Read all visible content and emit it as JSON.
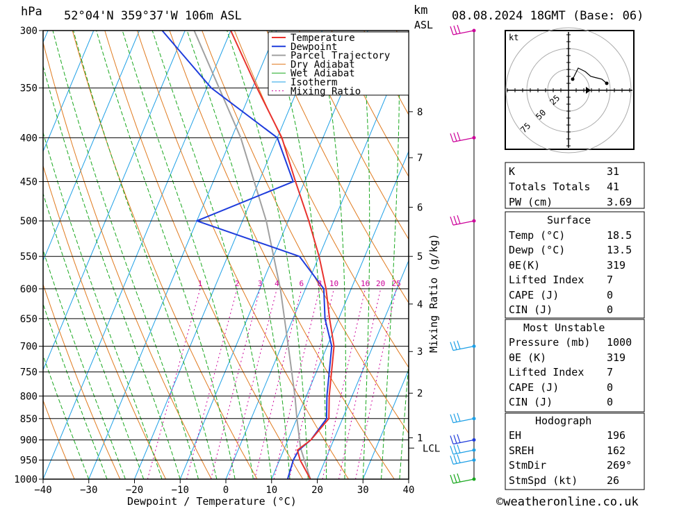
{
  "header": {
    "location": "52°04'N  359°37'W  106m  ASL",
    "datetime": "08.08.2024  18GMT  (Base: 06)",
    "unit_left": "hPa",
    "unit_right_1": "km",
    "unit_right_2": "ASL"
  },
  "colors": {
    "temperature": "#e8322d",
    "dewpoint": "#1e3cdc",
    "parcel": "#a0a0a0",
    "dry_adiabat": "#e07a1e",
    "wet_adiabat": "#19a81e",
    "isotherm": "#1ea0e6",
    "mixing_ratio": "#cc0099"
  },
  "chart_data": {
    "type": "line",
    "subtype": "skew-T log-P diagram",
    "title": "52°04'N  359°37'W  106m  ASL",
    "xlabel": "Dewpoint / Temperature (°C)",
    "ylabel": "hPa",
    "y2label": "Mixing Ratio (g/kg)",
    "xlim": [
      -40,
      40
    ],
    "ylim": [
      1000,
      300
    ],
    "y_scale": "log",
    "x_ticks": [
      "−40",
      "−30",
      "−20",
      "−10",
      "0",
      "10",
      "20",
      "30",
      "40"
    ],
    "pressure_levels": [
      300,
      350,
      400,
      450,
      500,
      550,
      600,
      650,
      700,
      750,
      800,
      850,
      900,
      950,
      1000
    ],
    "height_ticks_km": [
      {
        "km": "8",
        "p": 373
      },
      {
        "km": "7",
        "p": 422
      },
      {
        "km": "6",
        "p": 482
      },
      {
        "km": "5",
        "p": 550
      },
      {
        "km": "4",
        "p": 625
      },
      {
        "km": "3",
        "p": 710
      },
      {
        "km": "2",
        "p": 794
      },
      {
        "km": "1",
        "p": 895
      }
    ],
    "lcl": {
      "label": "LCL",
      "p": 920
    },
    "mixing_ratio_labels": [
      "1",
      "2",
      "3",
      "4",
      "6",
      "8",
      "10",
      "16",
      "20",
      "25"
    ],
    "legend": [
      "Temperature",
      "Dewpoint",
      "Parcel Trajectory",
      "Dry Adiabat",
      "Wet Adiabat",
      "Isotherm",
      "Mixing Ratio"
    ],
    "legend_position": "top-right",
    "series": [
      {
        "name": "Temperature",
        "points": [
          [
            1000,
            18.5
          ],
          [
            950,
            14.5
          ],
          [
            925,
            13
          ],
          [
            900,
            15
          ],
          [
            850,
            17
          ],
          [
            800,
            15
          ],
          [
            700,
            11.5
          ],
          [
            650,
            8
          ],
          [
            600,
            4.5
          ],
          [
            550,
            0
          ],
          [
            500,
            -5.5
          ],
          [
            450,
            -12
          ],
          [
            400,
            -19
          ],
          [
            350,
            -29
          ],
          [
            300,
            -40
          ]
        ]
      },
      {
        "name": "Dewpoint",
        "points": [
          [
            1000,
            13.5
          ],
          [
            950,
            13
          ],
          [
            925,
            13.3
          ],
          [
            900,
            15
          ],
          [
            850,
            16.5
          ],
          [
            800,
            14.5
          ],
          [
            700,
            11
          ],
          [
            650,
            7
          ],
          [
            600,
            4
          ],
          [
            550,
            -4.3
          ],
          [
            500,
            -30
          ],
          [
            450,
            -12.5
          ],
          [
            400,
            -20
          ],
          [
            350,
            -39
          ],
          [
            300,
            -55
          ]
        ]
      },
      {
        "name": "Parcel Trajectory",
        "points": [
          [
            1000,
            18.5
          ],
          [
            920,
            13.5
          ],
          [
            850,
            10
          ],
          [
            800,
            7.5
          ],
          [
            700,
            1.5
          ],
          [
            600,
            -5.5
          ],
          [
            500,
            -14.8
          ],
          [
            400,
            -28
          ],
          [
            300,
            -48
          ]
        ]
      }
    ]
  },
  "hodograph": {
    "unit": "kt",
    "ring_labels": [
      "25",
      "50",
      "75"
    ]
  },
  "wind_levels_hpa": [
    300,
    400,
    500,
    700,
    850,
    900,
    925,
    950,
    1000
  ],
  "indices": {
    "general": [
      {
        "label": "K",
        "value": "31"
      },
      {
        "label": "Totals Totals",
        "value": "41"
      },
      {
        "label": "PW (cm)",
        "value": "3.69"
      }
    ],
    "surface": {
      "title": "Surface",
      "rows": [
        {
          "label": "Temp (°C)",
          "value": "18.5"
        },
        {
          "label": "Dewp (°C)",
          "value": "13.5"
        },
        {
          "label": "θE(K)",
          "value": "319"
        },
        {
          "label": "Lifted Index",
          "value": "7"
        },
        {
          "label": "CAPE (J)",
          "value": "0"
        },
        {
          "label": "CIN (J)",
          "value": "0"
        }
      ]
    },
    "most_unstable": {
      "title": "Most Unstable",
      "rows": [
        {
          "label": "Pressure (mb)",
          "value": "1000"
        },
        {
          "label": "θE (K)",
          "value": "319"
        },
        {
          "label": "Lifted Index",
          "value": "7"
        },
        {
          "label": "CAPE (J)",
          "value": "0"
        },
        {
          "label": "CIN (J)",
          "value": "0"
        }
      ]
    },
    "hodograph_stats": {
      "title": "Hodograph",
      "rows": [
        {
          "label": "EH",
          "value": "196"
        },
        {
          "label": "SREH",
          "value": "162"
        },
        {
          "label": "StmDir",
          "value": "269°"
        },
        {
          "label": "StmSpd (kt)",
          "value": "26"
        }
      ]
    }
  },
  "footer": {
    "copyright": "©weatheronline.co.uk"
  }
}
